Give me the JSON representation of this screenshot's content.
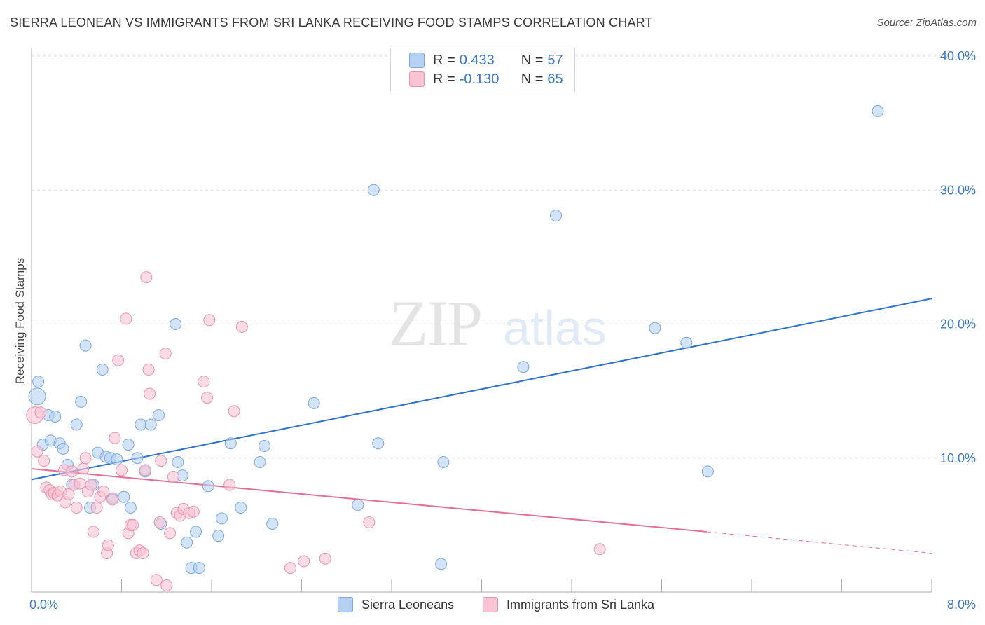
{
  "title": "SIERRA LEONEAN VS IMMIGRANTS FROM SRI LANKA RECEIVING FOOD STAMPS CORRELATION CHART",
  "source": "Source: ZipAtlas.com",
  "legend": {
    "rows": [
      {
        "r_label": "R = ",
        "r_value": "0.433",
        "n_label": "N = ",
        "n_value": "57"
      },
      {
        "r_label": "R = ",
        "r_value": "-0.130",
        "n_label": "N = ",
        "n_value": "65"
      }
    ]
  },
  "colors": {
    "blue_fill": "#b5d0f3",
    "blue_stroke": "#7aa8e0",
    "blue_line": "#2f72cc",
    "pink_fill": "#f8c3d3",
    "pink_stroke": "#ea93ad",
    "pink_line": "#e36d96",
    "grid": "#dedede",
    "axis_text": "#3b78c6"
  },
  "chart_data": {
    "type": "scatter",
    "title": "SIERRA LEONEAN VS IMMIGRANTS FROM SRI LANKA RECEIVING FOOD STAMPS CORRELATION CHART",
    "xlabel": "",
    "ylabel": "Receiving Food Stamps",
    "xlim": [
      0,
      8
    ],
    "ylim": [
      0,
      40
    ],
    "x_tick_labels": [
      "0.0%",
      "8.0%"
    ],
    "y_ticks": [
      10,
      20,
      30,
      40
    ],
    "y_tick_labels": [
      "10.0%",
      "20.0%",
      "30.0%",
      "40.0%"
    ],
    "grid": true,
    "legend_position": "bottom",
    "series": [
      {
        "name": "Sierra Leoneans",
        "color": "#b5d0f3",
        "trend": {
          "x": [
            0,
            8
          ],
          "y": [
            8.4,
            21.9
          ],
          "extrapolated_from": null
        },
        "points": [
          [
            0.05,
            14.6
          ],
          [
            0.06,
            15.7
          ],
          [
            0.1,
            11.0
          ],
          [
            0.15,
            13.2
          ],
          [
            0.17,
            11.3
          ],
          [
            0.21,
            13.1
          ],
          [
            0.25,
            11.1
          ],
          [
            0.28,
            10.7
          ],
          [
            0.32,
            9.5
          ],
          [
            0.36,
            8.0
          ],
          [
            0.4,
            12.5
          ],
          [
            0.44,
            14.2
          ],
          [
            0.48,
            18.4
          ],
          [
            0.52,
            6.3
          ],
          [
            0.55,
            8.0
          ],
          [
            0.59,
            10.4
          ],
          [
            0.63,
            16.6
          ],
          [
            0.66,
            10.1
          ],
          [
            0.7,
            10.0
          ],
          [
            0.72,
            7.0
          ],
          [
            0.76,
            9.9
          ],
          [
            0.82,
            7.1
          ],
          [
            0.86,
            11.0
          ],
          [
            0.88,
            6.3
          ],
          [
            0.94,
            10.0
          ],
          [
            0.97,
            12.5
          ],
          [
            1.01,
            9.0
          ],
          [
            1.06,
            12.5
          ],
          [
            1.13,
            13.2
          ],
          [
            1.15,
            5.1
          ],
          [
            1.28,
            20.0
          ],
          [
            1.3,
            9.7
          ],
          [
            1.34,
            8.7
          ],
          [
            1.38,
            3.7
          ],
          [
            1.42,
            1.8
          ],
          [
            1.46,
            4.5
          ],
          [
            1.49,
            1.8
          ],
          [
            1.57,
            7.9
          ],
          [
            1.66,
            4.2
          ],
          [
            1.69,
            5.5
          ],
          [
            1.77,
            11.1
          ],
          [
            1.86,
            6.3
          ],
          [
            2.03,
            9.7
          ],
          [
            2.07,
            10.9
          ],
          [
            2.14,
            5.1
          ],
          [
            2.51,
            14.1
          ],
          [
            2.9,
            6.5
          ],
          [
            3.04,
            30.0
          ],
          [
            3.08,
            11.1
          ],
          [
            3.64,
            2.1
          ],
          [
            3.66,
            9.7
          ],
          [
            4.37,
            16.8
          ],
          [
            4.66,
            28.1
          ],
          [
            5.54,
            19.7
          ],
          [
            5.82,
            18.6
          ],
          [
            6.01,
            9.0
          ],
          [
            7.52,
            35.9
          ]
        ]
      },
      {
        "name": "Immigrants from Sri Lanka",
        "color": "#f8c3d3",
        "trend": {
          "x": [
            0,
            6
          ],
          "y": [
            9.2,
            4.5
          ],
          "extrapolated_to": [
            8,
            2.9
          ]
        },
        "points": [
          [
            0.03,
            13.2
          ],
          [
            0.05,
            10.5
          ],
          [
            0.08,
            13.4
          ],
          [
            0.11,
            9.8
          ],
          [
            0.13,
            7.8
          ],
          [
            0.16,
            7.6
          ],
          [
            0.18,
            7.3
          ],
          [
            0.2,
            7.4
          ],
          [
            0.23,
            7.2
          ],
          [
            0.26,
            7.5
          ],
          [
            0.29,
            9.1
          ],
          [
            0.3,
            6.7
          ],
          [
            0.33,
            7.3
          ],
          [
            0.36,
            9.0
          ],
          [
            0.38,
            8.0
          ],
          [
            0.4,
            6.3
          ],
          [
            0.43,
            8.1
          ],
          [
            0.46,
            9.2
          ],
          [
            0.48,
            10.0
          ],
          [
            0.5,
            7.5
          ],
          [
            0.53,
            8.0
          ],
          [
            0.55,
            4.5
          ],
          [
            0.58,
            6.3
          ],
          [
            0.61,
            7.1
          ],
          [
            0.64,
            7.5
          ],
          [
            0.67,
            2.9
          ],
          [
            0.68,
            3.5
          ],
          [
            0.72,
            6.9
          ],
          [
            0.74,
            11.5
          ],
          [
            0.77,
            17.3
          ],
          [
            0.8,
            9.1
          ],
          [
            0.84,
            20.4
          ],
          [
            0.86,
            4.4
          ],
          [
            0.88,
            5.0
          ],
          [
            0.9,
            5.0
          ],
          [
            0.93,
            2.9
          ],
          [
            0.96,
            3.1
          ],
          [
            0.99,
            2.9
          ],
          [
            1.01,
            9.1
          ],
          [
            1.04,
            16.6
          ],
          [
            1.05,
            14.8
          ],
          [
            1.11,
            0.9
          ],
          [
            1.14,
            5.2
          ],
          [
            1.15,
            9.8
          ],
          [
            1.2,
            0.5
          ],
          [
            1.23,
            4.4
          ],
          [
            1.26,
            8.6
          ],
          [
            1.29,
            5.9
          ],
          [
            1.32,
            5.7
          ],
          [
            1.35,
            6.2
          ],
          [
            1.4,
            5.9
          ],
          [
            1.44,
            6.0
          ],
          [
            1.53,
            15.7
          ],
          [
            1.56,
            14.5
          ],
          [
            1.76,
            8.0
          ],
          [
            1.8,
            13.5
          ],
          [
            1.87,
            19.8
          ],
          [
            2.3,
            1.8
          ],
          [
            2.42,
            2.3
          ],
          [
            2.61,
            2.5
          ],
          [
            3.0,
            5.2
          ],
          [
            5.05,
            3.2
          ],
          [
            1.02,
            23.5
          ],
          [
            1.19,
            17.8
          ],
          [
            1.58,
            20.3
          ]
        ]
      }
    ]
  },
  "bottom_legend": {
    "items": [
      {
        "label": "Sierra Leoneans"
      },
      {
        "label": "Immigrants from Sri Lanka"
      }
    ]
  },
  "y_axis_label": "Receiving Food Stamps",
  "watermark": "ZIPatlas"
}
